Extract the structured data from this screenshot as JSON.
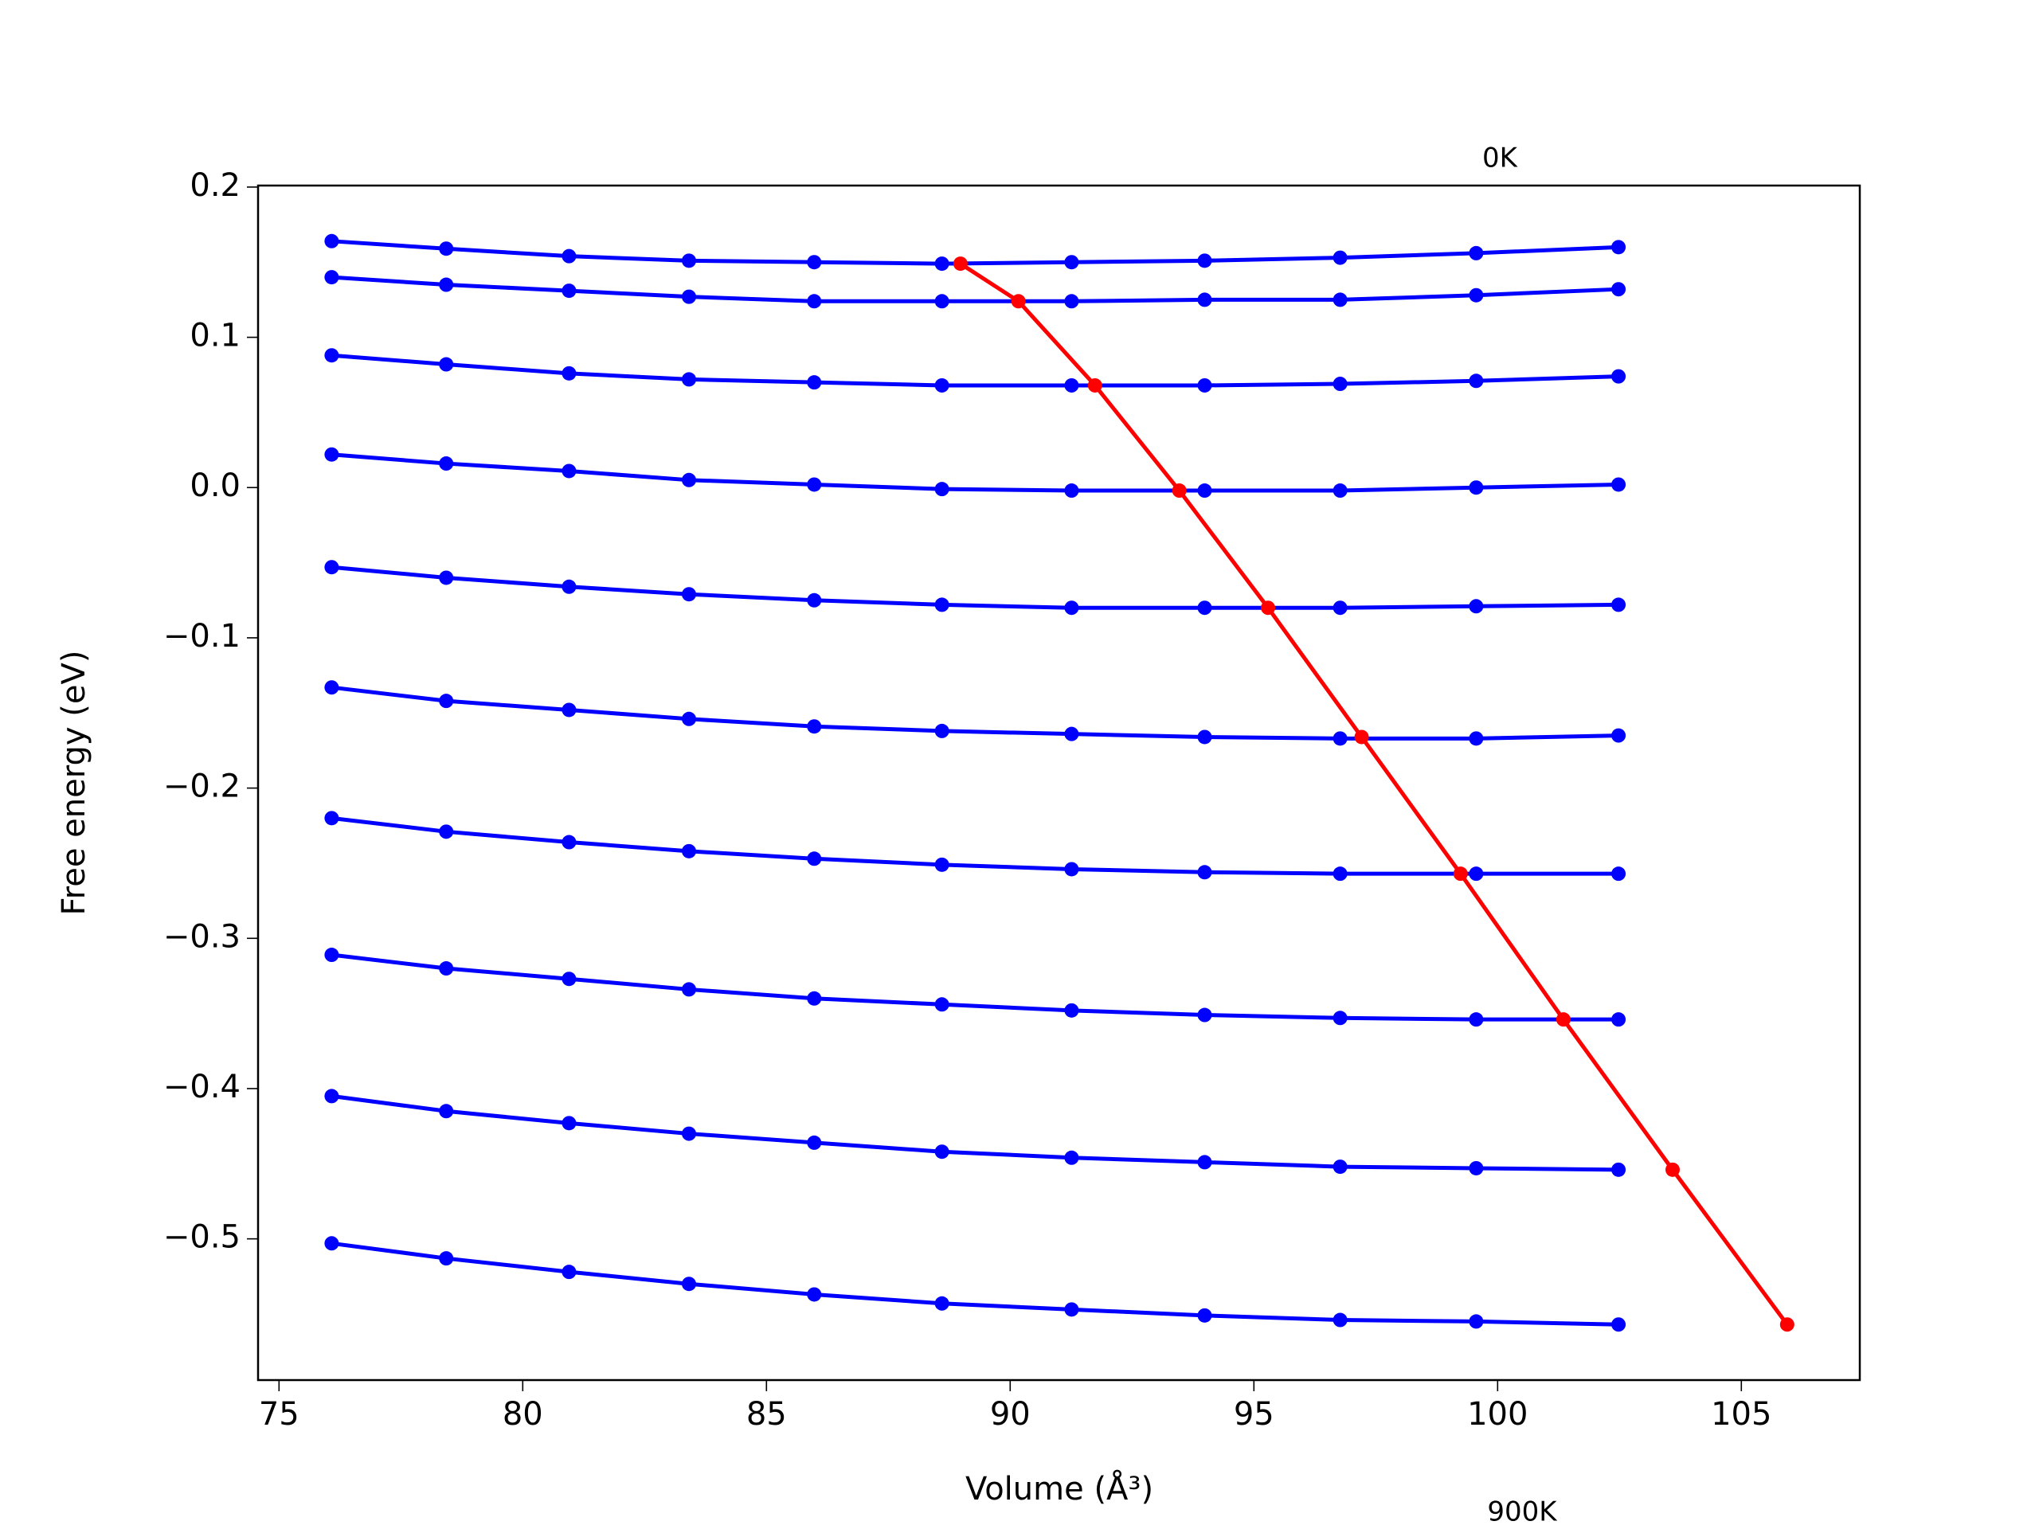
{
  "chart_data": {
    "type": "line",
    "xlabel": "Volume (Å³)",
    "ylabel": "Free energy (eV)",
    "annotations": [
      "0K",
      "900K"
    ],
    "xlim": [
      74.57,
      107.43
    ],
    "ylim": [
      -0.594,
      0.201
    ],
    "xticks": [
      75,
      80,
      85,
      90,
      95,
      100,
      105
    ],
    "yticks": [
      {
        "value": -0.5,
        "label": "−0.5"
      },
      {
        "value": -0.4,
        "label": "−0.4"
      },
      {
        "value": -0.3,
        "label": "−0.3"
      },
      {
        "value": -0.2,
        "label": "−0.2"
      },
      {
        "value": -0.1,
        "label": "−0.1"
      },
      {
        "value": 0,
        "label": "0.0"
      },
      0.1,
      0.2
    ],
    "series": [
      {
        "color": "#0000ff",
        "x": [
          76.08,
          78.43,
          80.95,
          83.41,
          85.98,
          88.6,
          91.26,
          93.99,
          96.77,
          99.56,
          102.48
        ],
        "values": [
          0.164,
          0.159,
          0.154,
          0.151,
          0.15,
          0.149,
          0.15,
          0.151,
          0.153,
          0.156,
          0.16
        ]
      },
      {
        "color": "#0000ff",
        "x": [
          76.08,
          78.43,
          80.95,
          83.41,
          85.98,
          88.6,
          91.26,
          93.99,
          96.77,
          99.56,
          102.48
        ],
        "values": [
          0.14,
          0.135,
          0.131,
          0.127,
          0.124,
          0.124,
          0.124,
          0.125,
          0.125,
          0.128,
          0.132
        ]
      },
      {
        "color": "#0000ff",
        "x": [
          76.08,
          78.43,
          80.95,
          83.41,
          85.98,
          88.6,
          91.26,
          93.99,
          96.77,
          99.56,
          102.48
        ],
        "values": [
          0.088,
          0.082,
          0.076,
          0.072,
          0.07,
          0.068,
          0.068,
          0.068,
          0.069,
          0.071,
          0.074
        ]
      },
      {
        "color": "#0000ff",
        "x": [
          76.08,
          78.43,
          80.95,
          83.41,
          85.98,
          88.6,
          91.26,
          93.99,
          96.77,
          99.56,
          102.48
        ],
        "values": [
          0.022,
          0.016,
          0.011,
          0.005,
          0.002,
          -0.001,
          -0.002,
          -0.002,
          -0.002,
          0.0,
          0.002
        ]
      },
      {
        "color": "#0000ff",
        "x": [
          76.08,
          78.43,
          80.95,
          83.41,
          85.98,
          88.6,
          91.26,
          93.99,
          96.77,
          99.56,
          102.48
        ],
        "values": [
          -0.053,
          -0.06,
          -0.066,
          -0.071,
          -0.075,
          -0.078,
          -0.08,
          -0.08,
          -0.08,
          -0.079,
          -0.078
        ]
      },
      {
        "color": "#0000ff",
        "x": [
          76.08,
          78.43,
          80.95,
          83.41,
          85.98,
          88.6,
          91.26,
          93.99,
          96.77,
          99.56,
          102.48
        ],
        "values": [
          -0.133,
          -0.142,
          -0.148,
          -0.154,
          -0.159,
          -0.162,
          -0.164,
          -0.166,
          -0.167,
          -0.167,
          -0.165
        ]
      },
      {
        "color": "#0000ff",
        "x": [
          76.08,
          78.43,
          80.95,
          83.41,
          85.98,
          88.6,
          91.26,
          93.99,
          96.77,
          99.56,
          102.48
        ],
        "values": [
          -0.22,
          -0.229,
          -0.236,
          -0.242,
          -0.247,
          -0.251,
          -0.254,
          -0.256,
          -0.257,
          -0.257,
          -0.257
        ]
      },
      {
        "color": "#0000ff",
        "x": [
          76.08,
          78.43,
          80.95,
          83.41,
          85.98,
          88.6,
          91.26,
          93.99,
          96.77,
          99.56,
          102.48
        ],
        "values": [
          -0.311,
          -0.32,
          -0.327,
          -0.334,
          -0.34,
          -0.344,
          -0.348,
          -0.351,
          -0.353,
          -0.354,
          -0.354
        ]
      },
      {
        "color": "#0000ff",
        "x": [
          76.08,
          78.43,
          80.95,
          83.41,
          85.98,
          88.6,
          91.26,
          93.99,
          96.77,
          99.56,
          102.48
        ],
        "values": [
          -0.405,
          -0.415,
          -0.423,
          -0.43,
          -0.436,
          -0.442,
          -0.446,
          -0.449,
          -0.452,
          -0.453,
          -0.454
        ]
      },
      {
        "color": "#0000ff",
        "x": [
          76.08,
          78.43,
          80.95,
          83.41,
          85.98,
          88.6,
          91.26,
          93.99,
          96.77,
          99.56,
          102.48
        ],
        "values": [
          -0.503,
          -0.513,
          -0.522,
          -0.53,
          -0.537,
          -0.543,
          -0.547,
          -0.551,
          -0.554,
          -0.555,
          -0.557
        ]
      },
      {
        "color": "#ff0000",
        "x": [
          88.98,
          90.17,
          91.74,
          93.47,
          95.29,
          97.21,
          99.24,
          101.35,
          103.59,
          105.94
        ],
        "values": [
          0.149,
          0.124,
          0.068,
          -0.002,
          -0.08,
          -0.166,
          -0.257,
          -0.354,
          -0.454,
          -0.557
        ]
      }
    ]
  }
}
